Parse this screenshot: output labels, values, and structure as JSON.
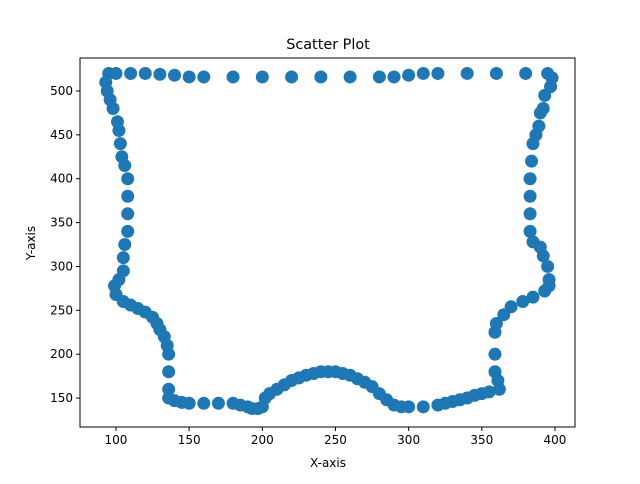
{
  "chart_data": {
    "type": "scatter",
    "title": "Scatter Plot",
    "x_label": "X-axis",
    "y_label": "Y-axis",
    "color": "#1f77b4",
    "xlim": [
      75.4,
      413.7
    ],
    "ylim": [
      117,
      537.6
    ],
    "xticks": [
      100,
      150,
      200,
      250,
      300,
      350,
      400
    ],
    "yticks": [
      150,
      200,
      250,
      300,
      350,
      400,
      450,
      500
    ],
    "grid": false,
    "x": [
      95,
      100,
      110,
      120,
      130,
      140,
      150,
      160,
      180,
      200,
      220,
      240,
      260,
      280,
      290,
      300,
      310,
      320,
      340,
      360,
      380,
      395,
      398,
      397,
      393,
      392,
      390,
      389,
      387,
      385,
      384,
      383,
      383,
      383,
      383,
      385,
      390,
      392,
      395,
      396,
      396,
      393,
      385,
      378,
      370,
      365,
      360,
      359,
      359,
      359,
      361,
      362,
      355,
      350,
      345,
      340,
      335,
      330,
      325,
      320,
      310,
      300,
      295,
      290,
      285,
      280,
      275,
      270,
      265,
      260,
      255,
      250,
      245,
      240,
      235,
      230,
      225,
      220,
      215,
      210,
      205,
      202,
      200,
      197,
      193,
      190,
      185,
      180,
      170,
      160,
      150,
      145,
      140,
      136,
      136,
      136,
      136,
      135,
      133,
      130,
      128,
      125,
      120,
      115,
      110,
      105,
      100,
      99,
      102,
      105,
      105,
      106,
      108,
      108,
      108,
      108,
      106,
      104,
      103,
      102,
      101,
      98,
      96,
      94,
      93
    ],
    "y": [
      520,
      520,
      520,
      520,
      519,
      518,
      516,
      516,
      516,
      516,
      516,
      516,
      516,
      516,
      516,
      518,
      520,
      520,
      520,
      520,
      520,
      520,
      515,
      505,
      495,
      480,
      475,
      460,
      450,
      440,
      420,
      400,
      380,
      360,
      340,
      328,
      322,
      312,
      300,
      285,
      278,
      272,
      265,
      260,
      254,
      245,
      235,
      225,
      200,
      180,
      170,
      160,
      157,
      155,
      153,
      150,
      148,
      146,
      144,
      142,
      140,
      140,
      140,
      142,
      148,
      155,
      163,
      168,
      172,
      176,
      178,
      180,
      180,
      180,
      178,
      176,
      173,
      170,
      165,
      160,
      155,
      150,
      140,
      138,
      138,
      140,
      142,
      144,
      144,
      144,
      144,
      145,
      147,
      150,
      160,
      180,
      200,
      210,
      220,
      228,
      235,
      242,
      248,
      252,
      256,
      260,
      268,
      278,
      285,
      295,
      310,
      325,
      340,
      360,
      380,
      400,
      415,
      425,
      440,
      455,
      465,
      480,
      490,
      500,
      510
    ]
  }
}
